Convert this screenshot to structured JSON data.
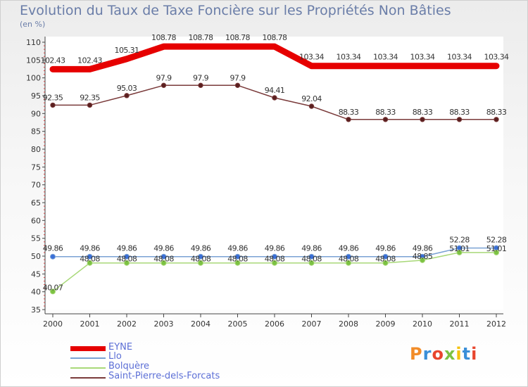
{
  "header": {
    "title": "Evolution du Taux de Taxe Foncière sur les Propriétés Non Bâties",
    "unit": "(en %)"
  },
  "logo": {
    "text": "Proxiti",
    "colors": [
      "#f28c28",
      "#3a8fd8",
      "#e8452e",
      "#7cc242",
      "#f4c20d",
      "#3a8fd8",
      "#e8452e"
    ]
  },
  "chart_data": {
    "type": "line",
    "title": "Evolution du Taux de Taxe Foncière sur les Propriétés Non Bâties",
    "ylabel": "(en %)",
    "xlabel": "",
    "ylim": [
      35,
      110
    ],
    "yticks": [
      35,
      40,
      45,
      50,
      55,
      60,
      65,
      70,
      75,
      80,
      85,
      90,
      95,
      100,
      105,
      110
    ],
    "grid": false,
    "legend_position": "bottom-left",
    "x": [
      "2000",
      "2001",
      "2002",
      "2003",
      "2004",
      "2005",
      "2006",
      "2007",
      "2008",
      "2009",
      "2010",
      "2011",
      "2012"
    ],
    "series": [
      {
        "name": "EYNE",
        "color": "#e60000",
        "values": [
          102.43,
          102.43,
          105.31,
          108.78,
          108.78,
          108.78,
          108.78,
          103.34,
          103.34,
          103.34,
          103.34,
          103.34,
          103.34
        ],
        "labels": [
          "102.43",
          "102.43",
          "105.31",
          "108.78",
          "108.78",
          "108.78",
          "108.78",
          "103.34",
          "103.34",
          "103.34",
          "103.34",
          "103.34",
          "103.34"
        ]
      },
      {
        "name": "Llo",
        "color": "#7aa2d4",
        "values": [
          49.86,
          49.86,
          49.86,
          49.86,
          49.86,
          49.86,
          49.86,
          49.86,
          49.86,
          49.86,
          49.86,
          52.28,
          52.28
        ],
        "labels": [
          "49.86",
          "49.86",
          "49.86",
          "49.86",
          "49.86",
          "49.86",
          "49.86",
          "49.86",
          "49.86",
          "49.86",
          "49.86",
          "52.28",
          "52.28"
        ]
      },
      {
        "name": "Bolquère",
        "color": "#a8d878",
        "values": [
          40.07,
          48.08,
          48.08,
          48.08,
          48.08,
          48.08,
          48.08,
          48.08,
          48.08,
          48.08,
          48.85,
          51.01,
          51.01
        ],
        "labels": [
          "40.07",
          "48.08",
          "48.08",
          "48.08",
          "48.08",
          "48.08",
          "48.08",
          "48.08",
          "48.08",
          "48.08",
          "48.85",
          "51.01",
          "51.01"
        ]
      },
      {
        "name": "Saint-Pierre-dels-Forcats",
        "color": "#7a3a3a",
        "values": [
          92.35,
          92.35,
          95.03,
          97.9,
          97.9,
          97.9,
          94.41,
          92.04,
          88.33,
          88.33,
          88.33,
          88.33,
          88.33
        ],
        "labels": [
          "92.35",
          "92.35",
          "95.03",
          "97.9",
          "97.9",
          "97.9",
          "94.41",
          "92.04",
          "88.33",
          "88.33",
          "88.33",
          "88.33",
          "88.33"
        ]
      }
    ]
  }
}
